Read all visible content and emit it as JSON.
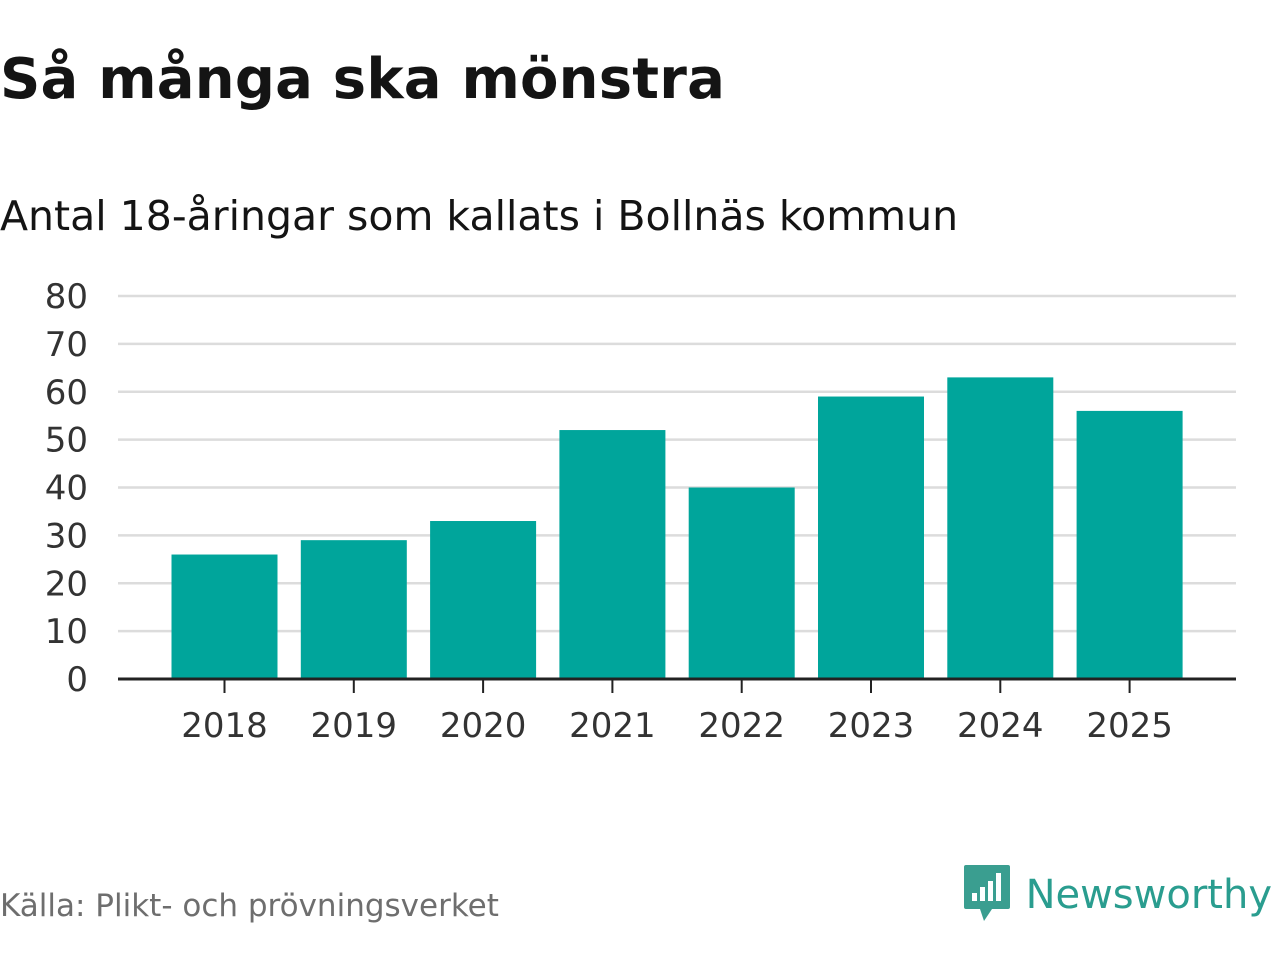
{
  "title": "Så många ska mönstra",
  "subtitle": "Antal 18-åringar som kallats i Bollnäs kommun",
  "source": "Källa: Plikt- och prövningsverket",
  "brand": {
    "name": "Newsworthy",
    "icon": "newsworthy-logo-icon"
  },
  "colors": {
    "bar": "#00a59b",
    "grid": "#dcdcdc",
    "axis": "#222222",
    "brand": "#2a9d8f"
  },
  "chart_data": {
    "type": "bar",
    "title": "Så många ska mönstra",
    "subtitle": "Antal 18-åringar som kallats i Bollnäs kommun",
    "categories": [
      "2018",
      "2019",
      "2020",
      "2021",
      "2022",
      "2023",
      "2024",
      "2025"
    ],
    "values": [
      26,
      29,
      33,
      52,
      40,
      59,
      63,
      56
    ],
    "ylim": [
      0,
      80
    ],
    "yticks": [
      0,
      10,
      20,
      30,
      40,
      50,
      60,
      70,
      80
    ],
    "grid": true,
    "legend": "none"
  }
}
